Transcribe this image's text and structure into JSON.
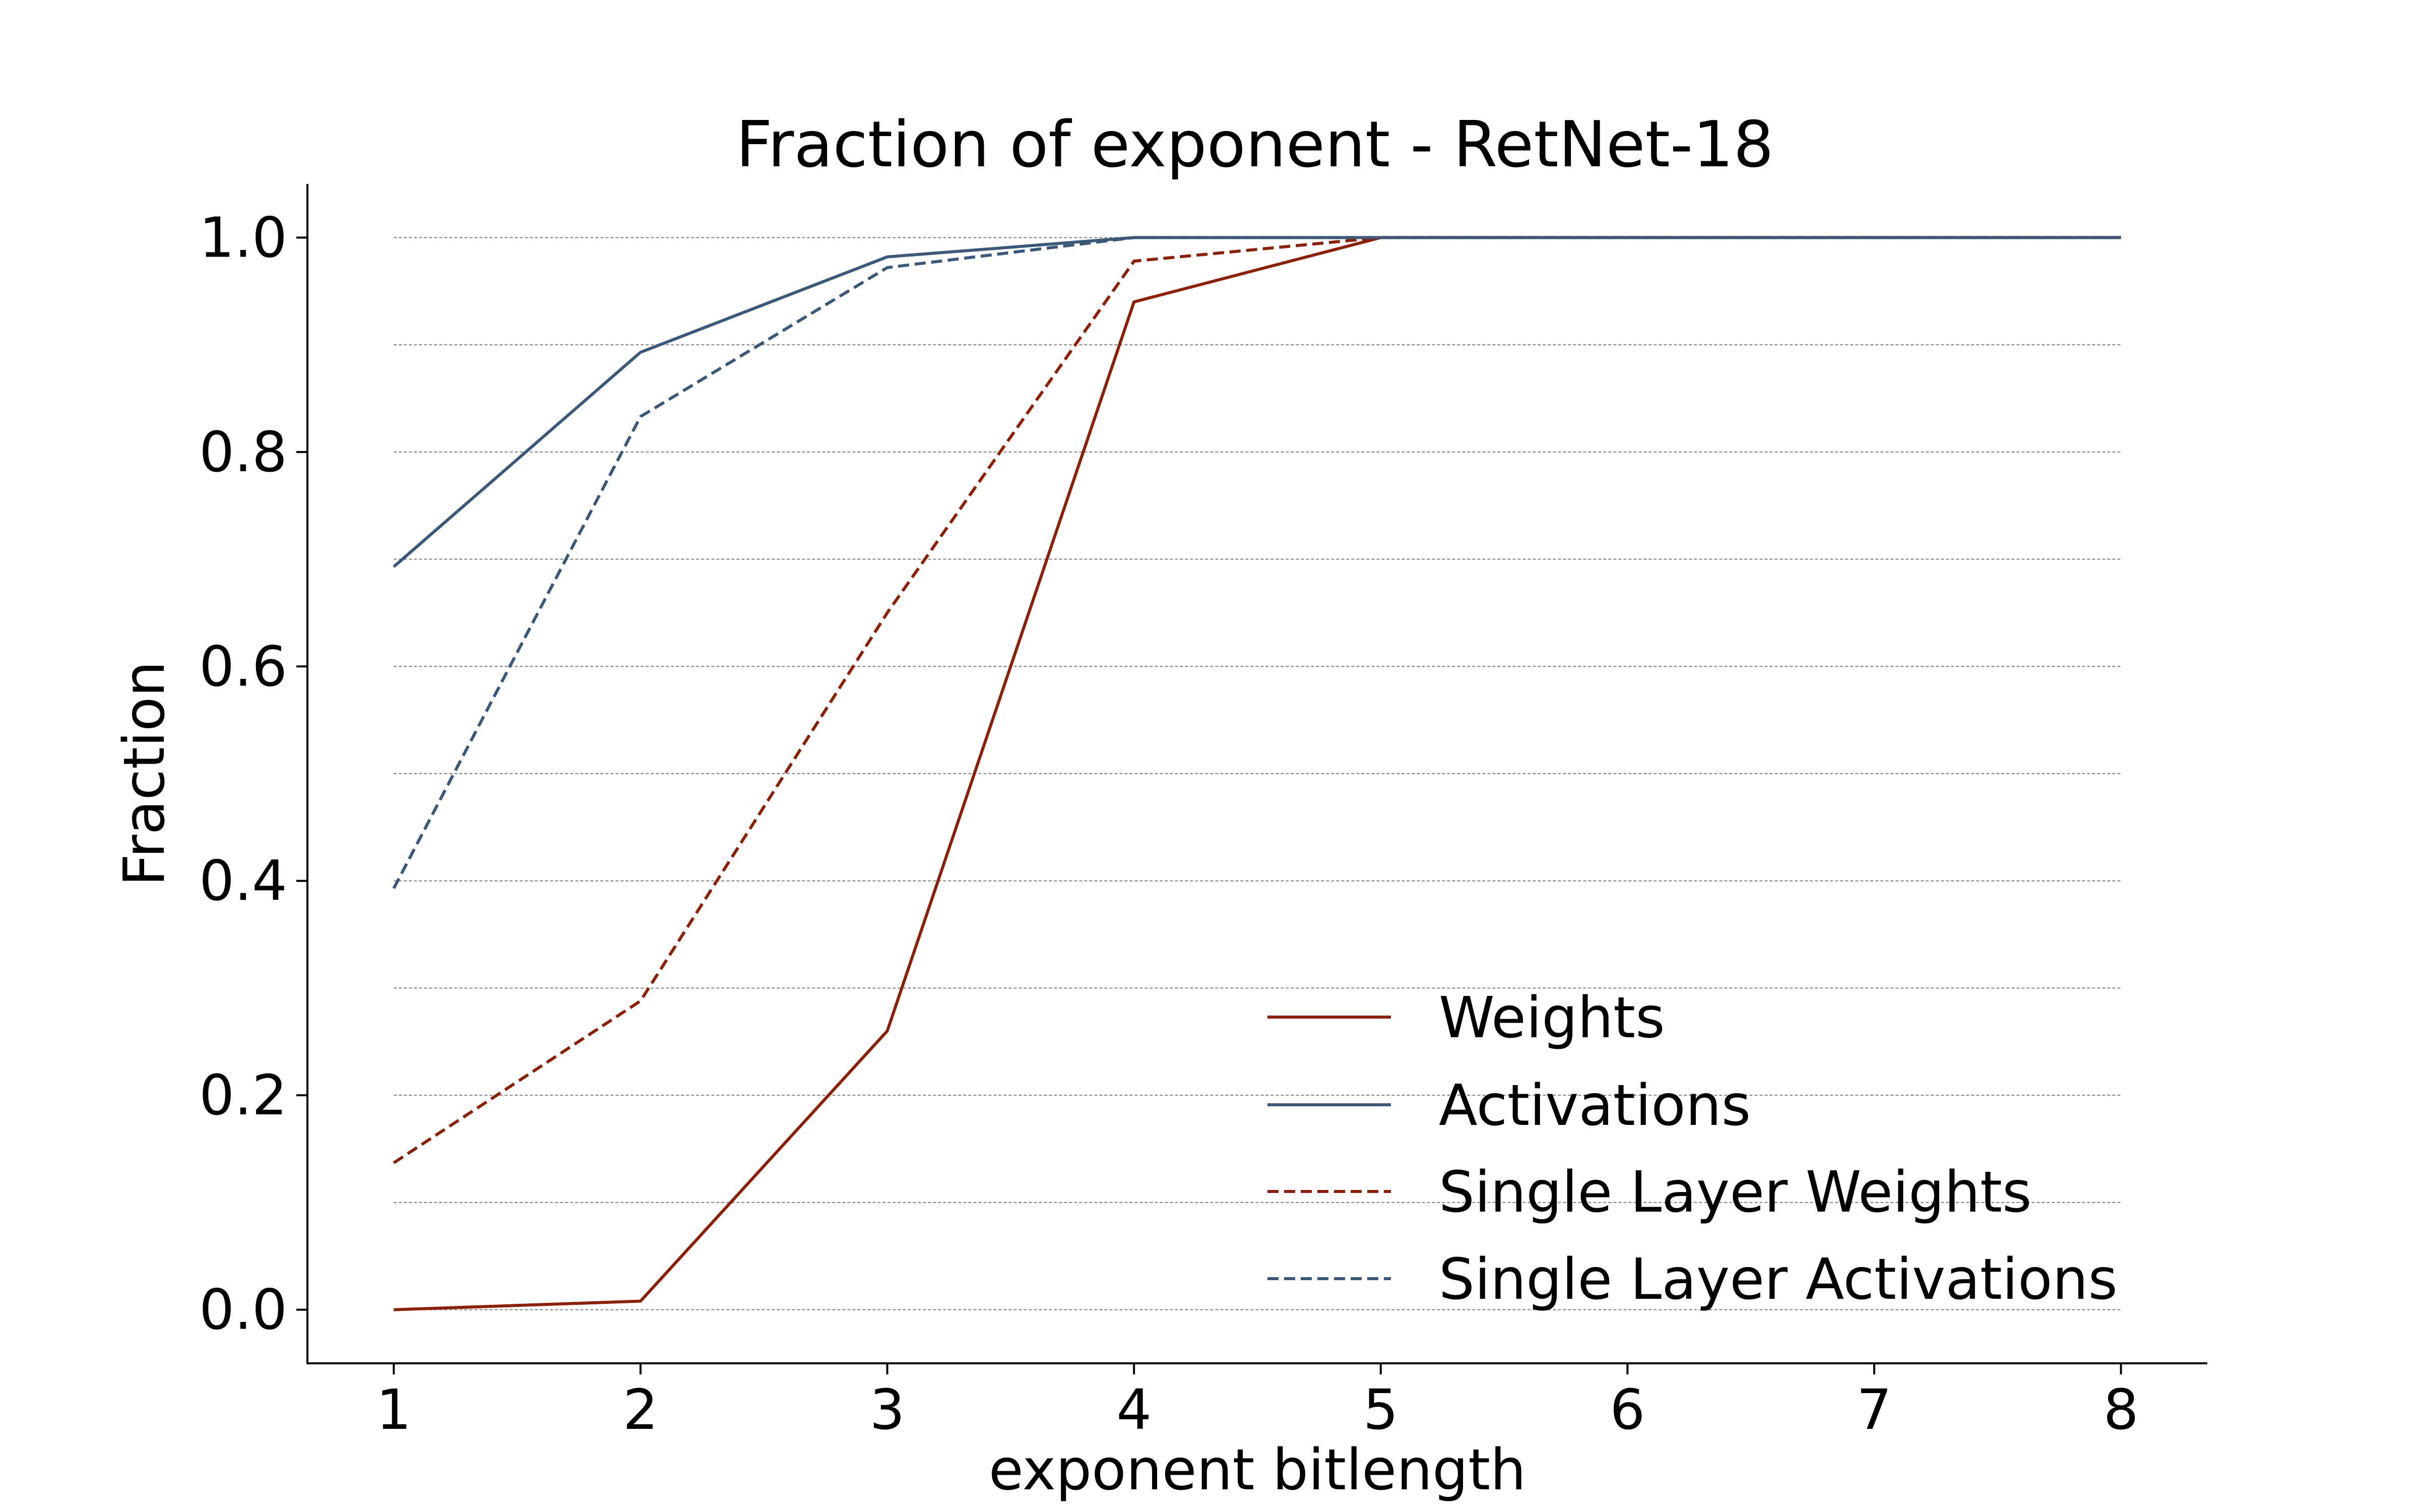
{
  "chart_data": {
    "type": "line",
    "title": "Fraction of exponent - RetNet-18",
    "xlabel": "exponent bitlength",
    "ylabel": "Fraction",
    "x": [
      1,
      2,
      3,
      4,
      5,
      6,
      7,
      8
    ],
    "xticks": [
      "1",
      "2",
      "3",
      "4",
      "5",
      "6",
      "7",
      "8"
    ],
    "yticks": [
      "0.0",
      "0.2",
      "0.4",
      "0.6",
      "0.8",
      "1.0"
    ],
    "xlim": [
      0.65,
      8.35
    ],
    "ylim": [
      -0.05,
      1.05
    ],
    "grid": "horizontal, every 0.1",
    "legend_position": "lower-right",
    "series": [
      {
        "name": "Weights",
        "color": "#8b2008",
        "style": "solid",
        "values": [
          0.0,
          0.008,
          0.26,
          0.94,
          1.0,
          1.0,
          1.0,
          1.0
        ]
      },
      {
        "name": "Activations",
        "color": "#3b5878",
        "style": "solid",
        "values": [
          0.693,
          0.893,
          0.982,
          1.0,
          1.0,
          1.0,
          1.0,
          1.0
        ]
      },
      {
        "name": "Single Layer Weights",
        "color": "#8b2008",
        "style": "dashed",
        "values": [
          0.137,
          0.288,
          0.65,
          0.978,
          1.0,
          1.0,
          1.0,
          1.0
        ]
      },
      {
        "name": "Single Layer Activations",
        "color": "#3b5878",
        "style": "dashed",
        "values": [
          0.393,
          0.833,
          0.972,
          1.0,
          1.0,
          1.0,
          1.0,
          1.0
        ]
      }
    ]
  }
}
